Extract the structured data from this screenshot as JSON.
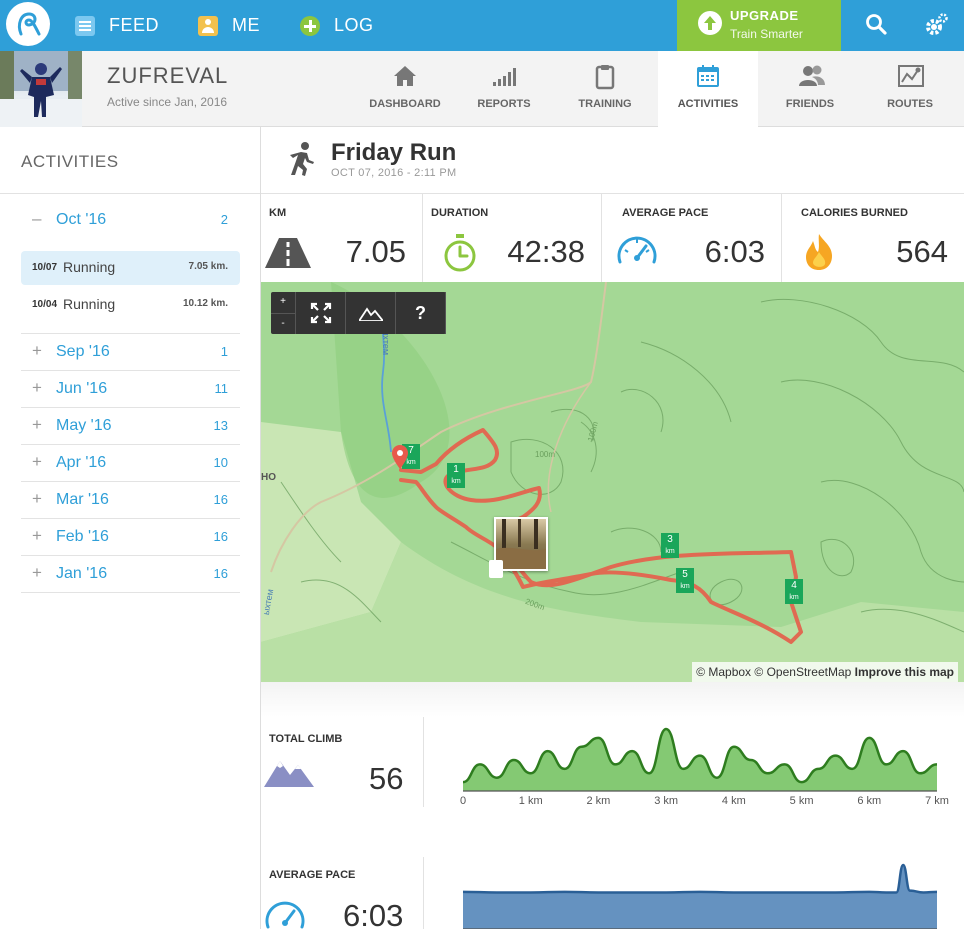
{
  "nav": {
    "feed": "FEED",
    "me": "ME",
    "log": "LOG",
    "upgrade_title": "UPGRADE",
    "upgrade_sub": "Train Smarter"
  },
  "profile": {
    "name": "ZUFREVAL",
    "since": "Active since Jan, 2016"
  },
  "tabs": [
    {
      "label": "DASHBOARD",
      "icon": "home-icon"
    },
    {
      "label": "REPORTS",
      "icon": "bar-chart-icon"
    },
    {
      "label": "TRAINING",
      "icon": "clipboard-icon"
    },
    {
      "label": "ACTIVITIES",
      "icon": "calendar-icon",
      "active": true
    },
    {
      "label": "FRIENDS",
      "icon": "people-icon"
    },
    {
      "label": "ROUTES",
      "icon": "route-map-icon"
    }
  ],
  "sidebar": {
    "title": "ACTIVITIES",
    "expanded_month": {
      "label": "Oct '16",
      "count": "2",
      "toggle": "–"
    },
    "activities": [
      {
        "date": "10/07",
        "type": "Running",
        "km": "7.05 km."
      },
      {
        "date": "10/04",
        "type": "Running",
        "km": "10.12 km."
      }
    ],
    "months": [
      {
        "label": "Sep '16",
        "count": "1"
      },
      {
        "label": "Jun '16",
        "count": "11"
      },
      {
        "label": "May '16",
        "count": "13"
      },
      {
        "label": "Apr '16",
        "count": "10"
      },
      {
        "label": "Mar '16",
        "count": "16"
      },
      {
        "label": "Feb '16",
        "count": "16"
      },
      {
        "label": "Jan '16",
        "count": "16"
      }
    ],
    "collapsed_toggle": "+"
  },
  "activity": {
    "title": "Friday Run",
    "datetime": "OCT 07, 2016  -  2:11 PM"
  },
  "stats": {
    "km_label": "KM",
    "km": "7.05",
    "duration_label": "DURATION",
    "duration": "42:38",
    "pace_label": "AVERAGE PACE",
    "pace": "6:03",
    "calories_label": "CALORIES BURNED",
    "calories": "564"
  },
  "map": {
    "zoom_in": "+",
    "zoom_out": "-",
    "help": "?",
    "attribution_mapbox": "© Mapbox",
    "attribution_osm": "© OpenStreetMap",
    "improve": "Improve this map",
    "contours": [
      "100m",
      "100m",
      "200m"
    ],
    "place_label": "HO",
    "stream_labels": [
      "ыхтем",
      "ыхтем"
    ],
    "km_markers": [
      "1",
      "3",
      "4",
      "5",
      "7"
    ],
    "km_marker_unit": "km"
  },
  "climb": {
    "label": "TOTAL CLIMB",
    "value": "56"
  },
  "pace_chart": {
    "label": "AVERAGE PACE",
    "value": "6:03"
  },
  "chart_data": [
    {
      "type": "area",
      "x_ticks": [
        "0",
        "1 km",
        "2 km",
        "3 km",
        "4 km",
        "5 km",
        "6 km",
        "7 km"
      ],
      "x": [
        0,
        0.25,
        0.5,
        0.75,
        1,
        1.25,
        1.5,
        1.75,
        2,
        2.25,
        2.5,
        2.75,
        3,
        3.25,
        3.5,
        3.75,
        4,
        4.25,
        4.5,
        4.75,
        5,
        5.25,
        5.5,
        5.75,
        6,
        6.25,
        6.5,
        6.75,
        7
      ],
      "y": [
        2,
        6,
        3,
        7,
        4,
        9,
        5,
        10,
        12,
        6,
        9,
        4,
        14,
        5,
        8,
        3,
        10,
        7,
        4,
        6,
        2,
        5,
        8,
        5,
        12,
        6,
        9,
        4,
        6
      ],
      "color": "#6fbf5a"
    },
    {
      "type": "area",
      "x": [
        0,
        0.5,
        1,
        1.5,
        2,
        2.5,
        3,
        3.5,
        4,
        4.5,
        5,
        5.5,
        6,
        6.25,
        6.4,
        6.5,
        6.6,
        6.8,
        7
      ],
      "y": [
        6.1,
        6.0,
        6.0,
        6.1,
        6.0,
        6.0,
        6.0,
        6.1,
        6.0,
        6.0,
        6.0,
        6.0,
        6.1,
        6.0,
        6.0,
        10.5,
        6.3,
        6.0,
        6.1
      ],
      "color": "#4a7fb5"
    }
  ]
}
